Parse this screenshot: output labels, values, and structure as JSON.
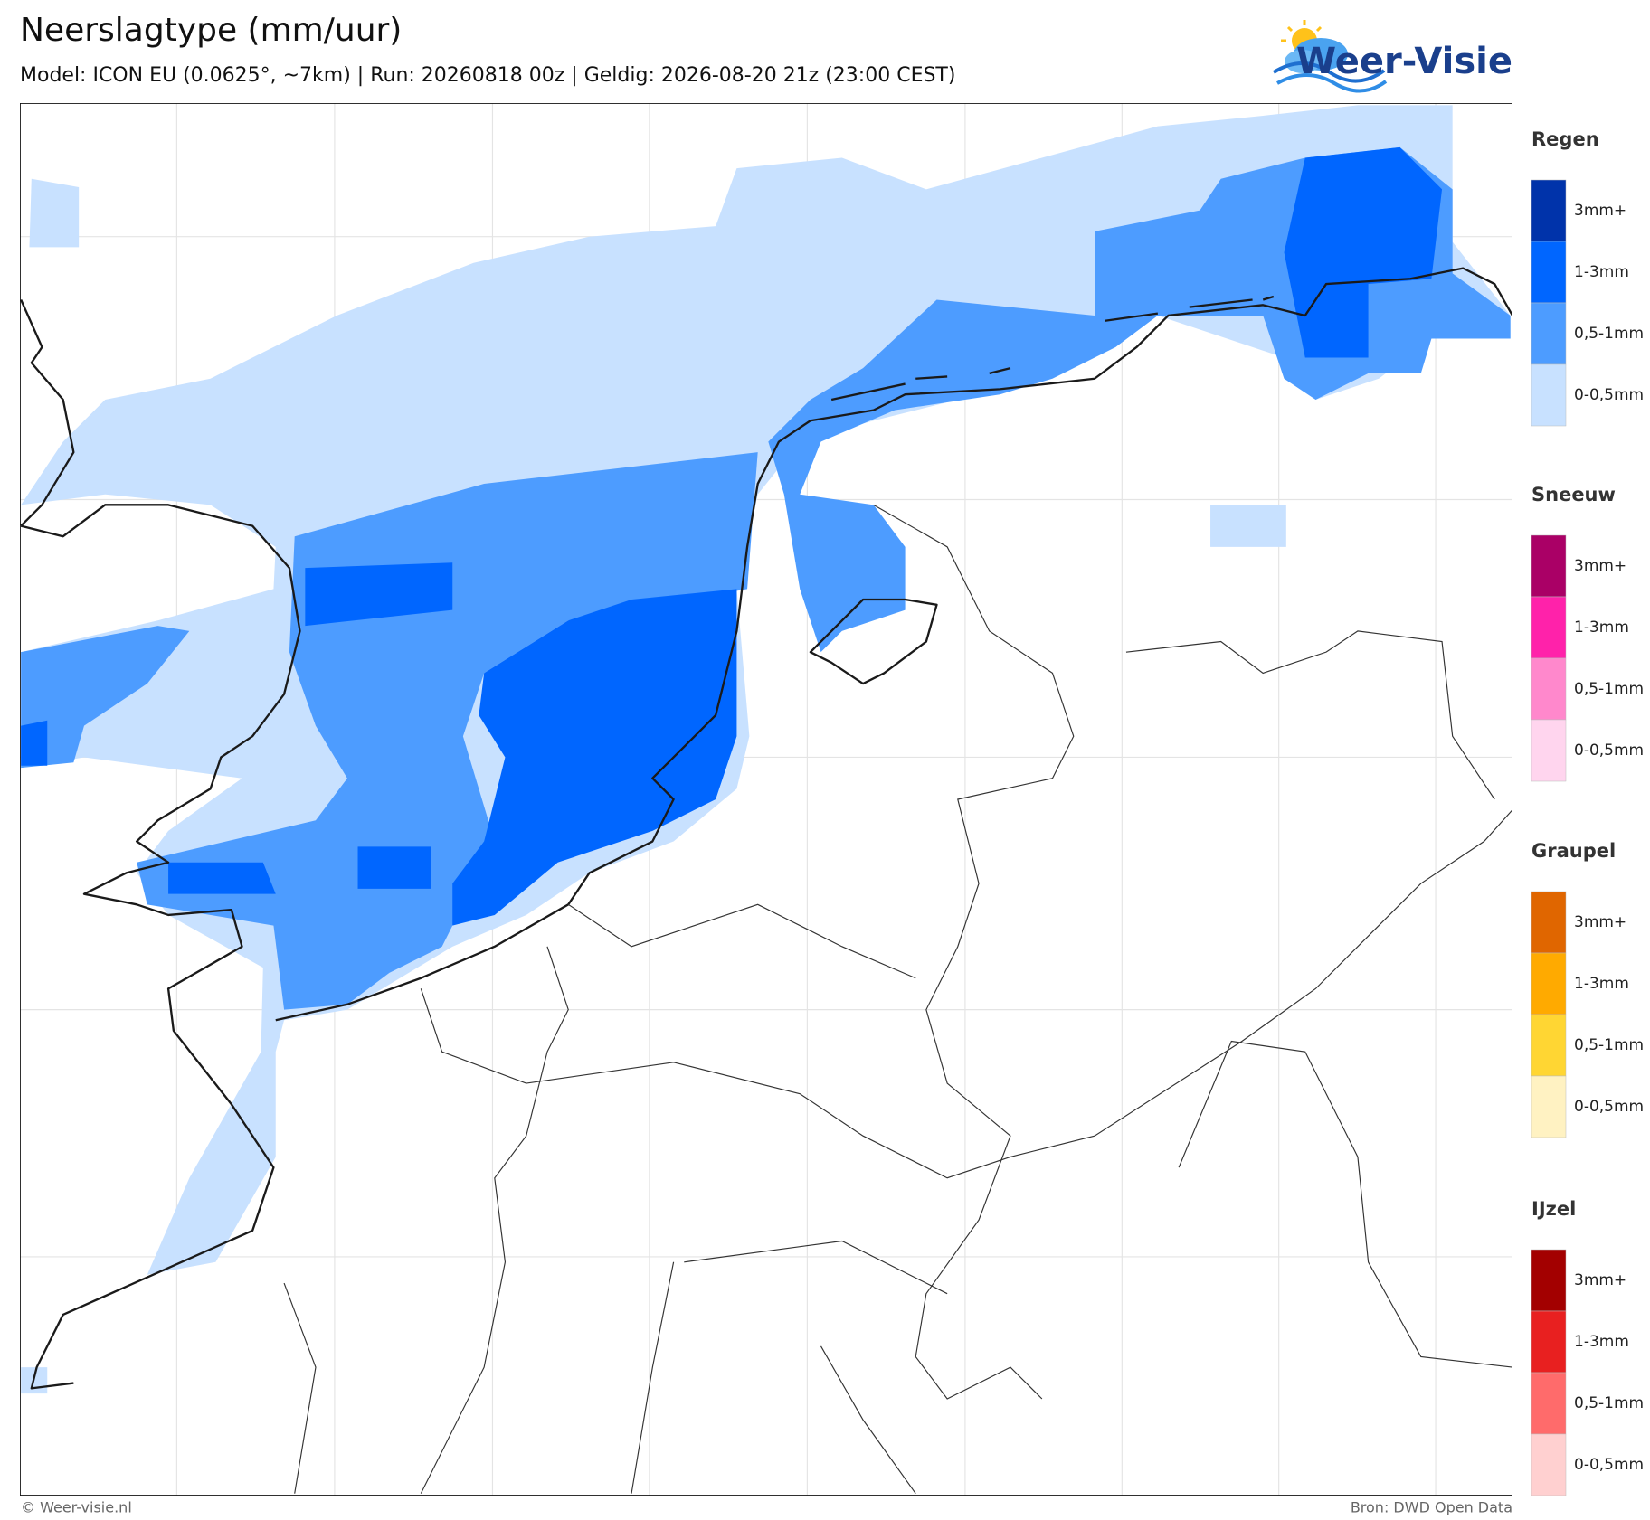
{
  "header": {
    "title": "Neerslagtype (mm/uur)",
    "subtitle": "Model: ICON EU (0.0625°, ~7km)  |  Run: 20260818 00z  |  Geldig: 2026-08-20 21z (23:00 CEST)"
  },
  "logo": {
    "text": "Weer-Visie"
  },
  "legend": {
    "sections": [
      {
        "title": "Regen",
        "items": [
          {
            "label": "3mm+",
            "color": "#0033aa"
          },
          {
            "label": "1-3mm",
            "color": "#0066ff"
          },
          {
            "label": "0,5-1mm",
            "color": "#4d9cff"
          },
          {
            "label": "0-0,5mm",
            "color": "#c8e1ff"
          }
        ]
      },
      {
        "title": "Sneeuw",
        "items": [
          {
            "label": "3mm+",
            "color": "#aa0066"
          },
          {
            "label": "1-3mm",
            "color": "#ff22aa"
          },
          {
            "label": "0,5-1mm",
            "color": "#ff88cc"
          },
          {
            "label": "0-0,5mm",
            "color": "#ffd5ee"
          }
        ]
      },
      {
        "title": "Graupel",
        "items": [
          {
            "label": "3mm+",
            "color": "#e06600"
          },
          {
            "label": "1-3mm",
            "color": "#ffaa00"
          },
          {
            "label": "0,5-1mm",
            "color": "#ffd633"
          },
          {
            "label": "0-0,5mm",
            "color": "#fff2c2"
          }
        ]
      },
      {
        "title": "IJzel",
        "items": [
          {
            "label": "3mm+",
            "color": "#a30000"
          },
          {
            "label": "1-3mm",
            "color": "#e82020"
          },
          {
            "label": "0,5-1mm",
            "color": "#ff6b6b"
          },
          {
            "label": "0-0,5mm",
            "color": "#ffd0d0"
          }
        ]
      }
    ]
  },
  "footer": {
    "left": "© Weer-visie.nl",
    "right": "Bron: DWD Open Data"
  }
}
